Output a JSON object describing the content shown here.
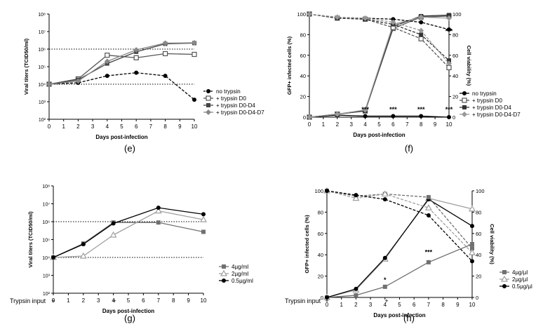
{
  "chart_data": [
    {
      "panel": "e",
      "type": "line",
      "title": "",
      "xlabel": "Days post-infection",
      "ylabel": "Viral titers (TCID50/ml)",
      "yscale": "log",
      "xlim": [
        0,
        10
      ],
      "ylim": [
        100,
        100000000
      ],
      "xticks": [
        0,
        1,
        2,
        3,
        4,
        5,
        6,
        7,
        8,
        9,
        10
      ],
      "ytick_labels": [
        "10²",
        "10³",
        "10⁴",
        "10⁵",
        "10⁶",
        "10⁷",
        "10⁸"
      ],
      "hlines": [
        10000,
        1000000
      ],
      "legend_position": "right",
      "series": [
        {
          "name": "no trypsin",
          "color": "#000000",
          "marker": "circle",
          "dash": true,
          "x": [
            0,
            2,
            4,
            6,
            8,
            10
          ],
          "values": [
            10000,
            12000,
            30000,
            45000,
            30000,
            1300
          ]
        },
        {
          "name": "+ trypsin D0",
          "color": "#555555",
          "marker": "square-open",
          "dash": false,
          "x": [
            0,
            2,
            4,
            6,
            8,
            10
          ],
          "values": [
            10000,
            20000,
            450000,
            320000,
            550000,
            500000
          ]
        },
        {
          "name": "+ trypsin D0-D4",
          "color": "#444444",
          "marker": "square",
          "dash": false,
          "x": [
            0,
            2,
            4,
            6,
            8,
            10
          ],
          "values": [
            10000,
            18000,
            150000,
            700000,
            2000000,
            2200000
          ]
        },
        {
          "name": "+ trypsin D0-D4-D7",
          "color": "#888888",
          "marker": "diamond",
          "dash": false,
          "x": [
            0,
            2,
            4,
            6,
            8,
            10
          ],
          "values": [
            10000,
            15000,
            200000,
            900000,
            2200000,
            2300000
          ]
        }
      ]
    },
    {
      "panel": "f",
      "type": "line",
      "title": "",
      "xlabel": "Days post-infection",
      "ylabel": "GFP+ infected cells (%)",
      "ylabel_right": "Cell viability (%)",
      "xlim": [
        0,
        10
      ],
      "ylim": [
        0,
        100
      ],
      "xticks": [
        0,
        1,
        2,
        3,
        4,
        5,
        6,
        7,
        8,
        9,
        10
      ],
      "yticks": [
        0,
        20,
        40,
        60,
        80,
        100
      ],
      "legend_position": "right",
      "annotations": [
        {
          "x": 4,
          "y": 4,
          "text": "***"
        },
        {
          "x": 6,
          "y": 4,
          "text": "***"
        },
        {
          "x": 8,
          "y": 4,
          "text": "***"
        },
        {
          "x": 10,
          "y": 4,
          "text": "***"
        },
        {
          "x": 10,
          "y": 80,
          "text": "***"
        }
      ],
      "series": [
        {
          "name": "no trypsin",
          "color": "#000000",
          "marker": "circle",
          "dash": false,
          "x": [
            0,
            2,
            4,
            6,
            8,
            10
          ],
          "values": [
            0,
            2,
            1,
            1,
            1,
            0
          ]
        },
        {
          "name": "+ trypsin D0",
          "color": "#555555",
          "marker": "square-open",
          "dash": false,
          "x": [
            0,
            2,
            4,
            6,
            8,
            10
          ],
          "values": [
            0,
            3,
            6,
            86,
            97,
            98
          ]
        },
        {
          "name": "+ trypsin D0-D4",
          "color": "#333333",
          "marker": "square",
          "dash": false,
          "x": [
            0,
            2,
            4,
            6,
            8,
            10
          ],
          "values": [
            0,
            3,
            6,
            88,
            98,
            99
          ]
        },
        {
          "name": "+ trypsin D0-D4-D7",
          "color": "#999999",
          "marker": "diamond",
          "dash": false,
          "x": [
            0,
            2,
            4,
            6,
            8,
            10
          ],
          "values": [
            0,
            3,
            7,
            90,
            97,
            96
          ]
        },
        {
          "name": "no trypsin (viability)",
          "color": "#000000",
          "marker": "circle",
          "dash": true,
          "x": [
            0,
            2,
            4,
            6,
            8,
            10
          ],
          "values": [
            100,
            96,
            96,
            95,
            92,
            85
          ]
        },
        {
          "name": "+ trypsin D0 (viability)",
          "color": "#555555",
          "marker": "square-open",
          "dash": true,
          "x": [
            0,
            2,
            4,
            6,
            8,
            10
          ],
          "values": [
            100,
            96,
            95,
            87,
            76,
            48
          ]
        },
        {
          "name": "+ trypsin D0-D4 (viability)",
          "color": "#333333",
          "marker": "square",
          "dash": true,
          "x": [
            0,
            2,
            4,
            6,
            8,
            10
          ],
          "values": [
            100,
            96,
            95,
            90,
            80,
            55
          ]
        },
        {
          "name": "+ trypsin D0-D4-D7 (viability)",
          "color": "#999999",
          "marker": "diamond",
          "dash": true,
          "x": [
            0,
            2,
            4,
            6,
            8,
            10
          ],
          "values": [
            100,
            97,
            96,
            92,
            84,
            52
          ]
        }
      ]
    },
    {
      "panel": "g",
      "type": "line",
      "title": "",
      "xlabel": "Days post-infection",
      "ylabel": "Viral titers (TCID50/ml)",
      "yscale": "log",
      "xlim": [
        0,
        10
      ],
      "ylim": [
        100,
        100000000
      ],
      "xticks": [
        0,
        1,
        2,
        3,
        4,
        5,
        6,
        7,
        8,
        9,
        10
      ],
      "ytick_labels": [
        "10²",
        "10³",
        "10⁴",
        "10⁵",
        "10⁶",
        "10⁷",
        "10⁸"
      ],
      "hlines": [
        10000,
        1000000
      ],
      "legend_position": "right",
      "series": [
        {
          "name": "4µg/ml",
          "color": "#707070",
          "marker": "square",
          "dash": false,
          "x": [
            0,
            2,
            4,
            7,
            10
          ],
          "values": [
            10000,
            60000,
            900000,
            900000,
            270000
          ]
        },
        {
          "name": "2µg/ml",
          "color": "#a0a0a0",
          "marker": "triangle-open",
          "dash": false,
          "x": [
            0,
            2,
            4,
            7,
            10
          ],
          "values": [
            10000,
            12000,
            180000,
            4000000,
            1300000
          ]
        },
        {
          "name": "0.5µg/ml",
          "color": "#000000",
          "marker": "circle",
          "dash": false,
          "x": [
            0,
            2,
            4,
            7,
            10
          ],
          "values": [
            10000,
            55000,
            800000,
            6000000,
            2600000
          ]
        }
      ]
    },
    {
      "panel": "h",
      "type": "line",
      "title": "",
      "xlabel": "Days post-infection",
      "ylabel": "GFP+ infected cells (%)",
      "ylabel_right": "Cell viability (%)",
      "xlim": [
        0,
        10
      ],
      "ylim": [
        0,
        100
      ],
      "xticks": [
        0,
        1,
        2,
        3,
        4,
        5,
        6,
        7,
        8,
        9,
        10
      ],
      "yticks": [
        0,
        20,
        40,
        60,
        80,
        100
      ],
      "legend_position": "right",
      "annotations": [
        {
          "x": 4,
          "y": 13,
          "text": "*"
        },
        {
          "x": 7,
          "y": 39,
          "text": "***"
        }
      ],
      "series": [
        {
          "name": "4µg/µl",
          "color": "#707070",
          "marker": "square",
          "dash": false,
          "x": [
            0,
            2,
            4,
            7,
            10
          ],
          "values": [
            0,
            2,
            10,
            33,
            50
          ]
        },
        {
          "name": "2µg/µl",
          "color": "#a0a0a0",
          "marker": "triangle-open",
          "dash": false,
          "x": [
            0,
            2,
            4,
            7,
            10
          ],
          "values": [
            0,
            7,
            36,
            93,
            83
          ]
        },
        {
          "name": "0.5µg/µl",
          "color": "#000000",
          "marker": "circle",
          "dash": false,
          "x": [
            0,
            2,
            4,
            7,
            10
          ],
          "values": [
            0,
            8,
            37,
            92,
            67
          ]
        },
        {
          "name": "4µg/µl (viability)",
          "color": "#707070",
          "marker": "square",
          "dash": true,
          "x": [
            0,
            2,
            4,
            7,
            10
          ],
          "values": [
            100,
            95,
            97,
            94,
            46
          ]
        },
        {
          "name": "2µg/µl (viability)",
          "color": "#a0a0a0",
          "marker": "triangle-open",
          "dash": true,
          "x": [
            0,
            2,
            4,
            7,
            10
          ],
          "values": [
            100,
            93,
            97,
            84,
            42
          ]
        },
        {
          "name": "0.5µg/µl (viability)",
          "color": "#000000",
          "marker": "circle",
          "dash": true,
          "x": [
            0,
            2,
            4,
            7,
            10
          ],
          "values": [
            100,
            96,
            92,
            77,
            34
          ]
        }
      ]
    }
  ],
  "panel_labels": {
    "e": "(e)",
    "f": "(f)",
    "g": "(g)",
    "h": "(h)"
  },
  "trypsin_input": {
    "g": {
      "label": "Trypsin input",
      "marks": [
        "+",
        "+"
      ]
    },
    "h": {
      "label": "Trypsin input",
      "marks": [
        "+",
        "+"
      ]
    }
  }
}
